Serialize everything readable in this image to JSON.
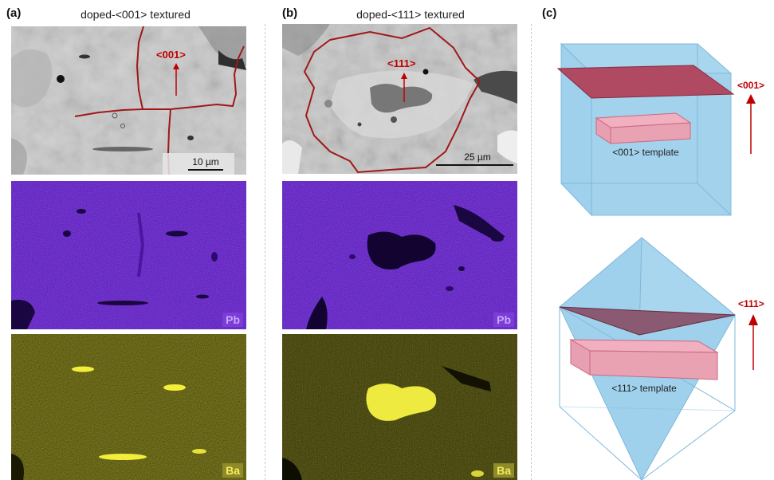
{
  "panels": {
    "a": {
      "label": "(a)",
      "title": "doped-<001> textured",
      "direction": "<001>",
      "scalebar": "10 µm",
      "pb_tag": "Pb",
      "ba_tag": "Ba"
    },
    "b": {
      "label": "(b)",
      "title": "doped-<111> textured",
      "direction": "<111>",
      "scalebar": "25 µm",
      "pb_tag": "Pb",
      "ba_tag": "Ba"
    },
    "c": {
      "label": "(c)",
      "top_template": "<001> template",
      "top_direction": "<001>",
      "bottom_template": "<111> template",
      "bottom_direction": "<111>"
    }
  },
  "colors": {
    "grain_boundary": "#a01818",
    "direction_red": "#c00000",
    "pb_map": "#5a12c8",
    "ba_map": "#3e3c06",
    "cube_blue": "#9fd1ec",
    "template_pink": "#e9a2b2"
  }
}
